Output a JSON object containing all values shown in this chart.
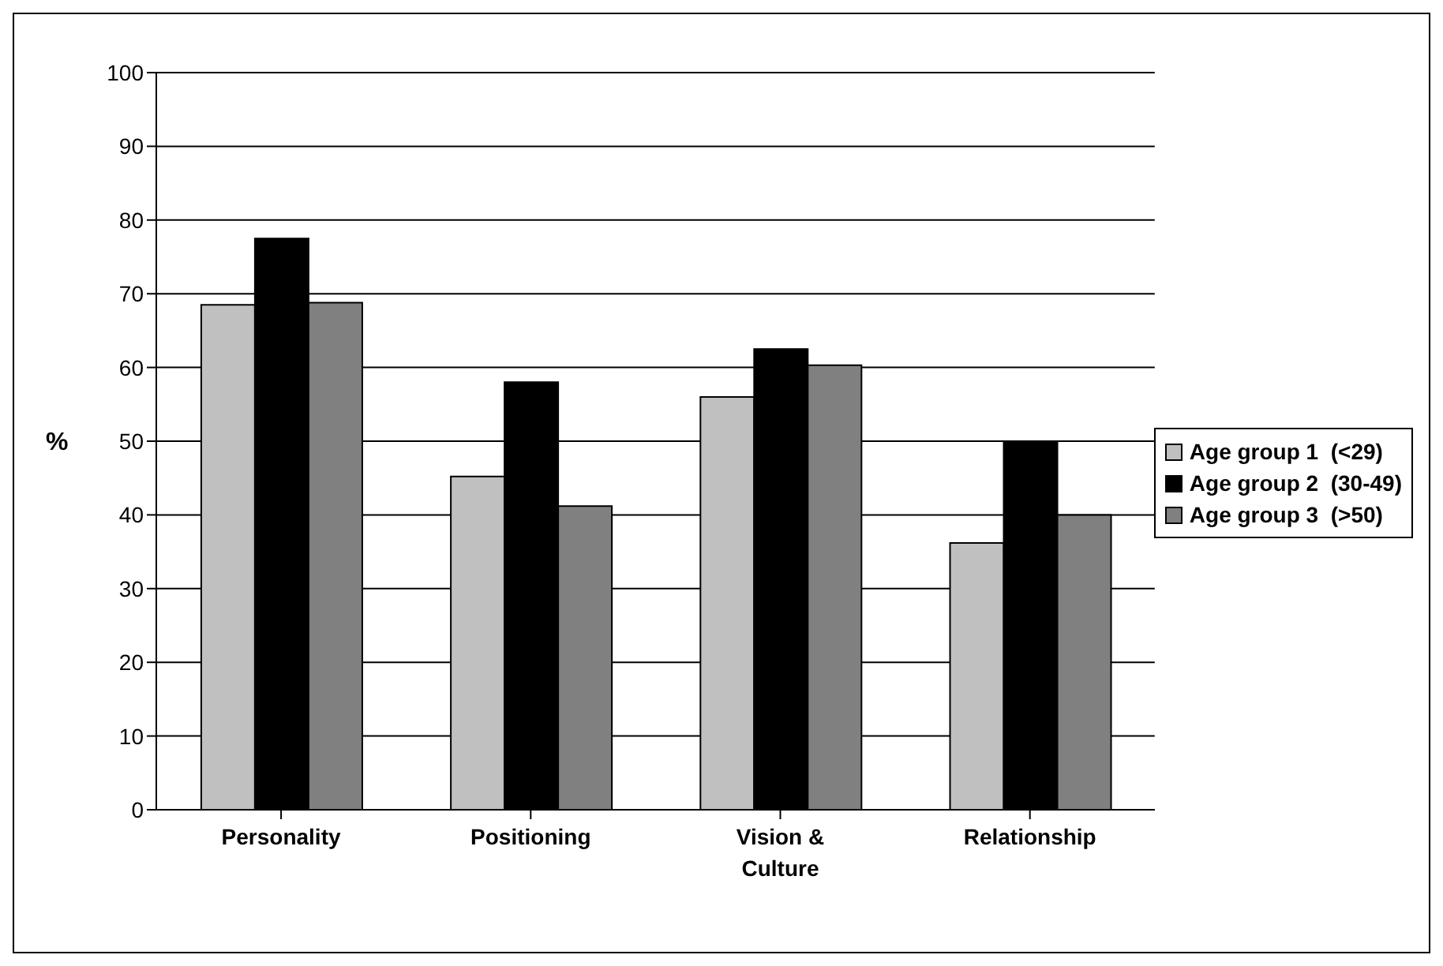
{
  "chart_data": {
    "type": "bar",
    "ylabel": "%",
    "categories": [
      "Personality",
      "Positioning",
      "Vision & Culture",
      "Relationship"
    ],
    "series": [
      {
        "name": "Age group 1  (<29)",
        "color": "#c0c0c0",
        "values": [
          68.5,
          45.2,
          56,
          36.2
        ]
      },
      {
        "name": "Age group 2  (30-49)",
        "color": "#000000",
        "values": [
          77.5,
          58,
          62.5,
          50
        ]
      },
      {
        "name": "Age group 3  (>50)",
        "color": "#808080",
        "values": [
          68.8,
          41.2,
          60.3,
          40
        ]
      }
    ],
    "ylim": [
      0,
      100
    ],
    "yticks": [
      0,
      10,
      20,
      30,
      40,
      50,
      60,
      70,
      80,
      90,
      100
    ],
    "grid": "y",
    "legend": "right"
  }
}
